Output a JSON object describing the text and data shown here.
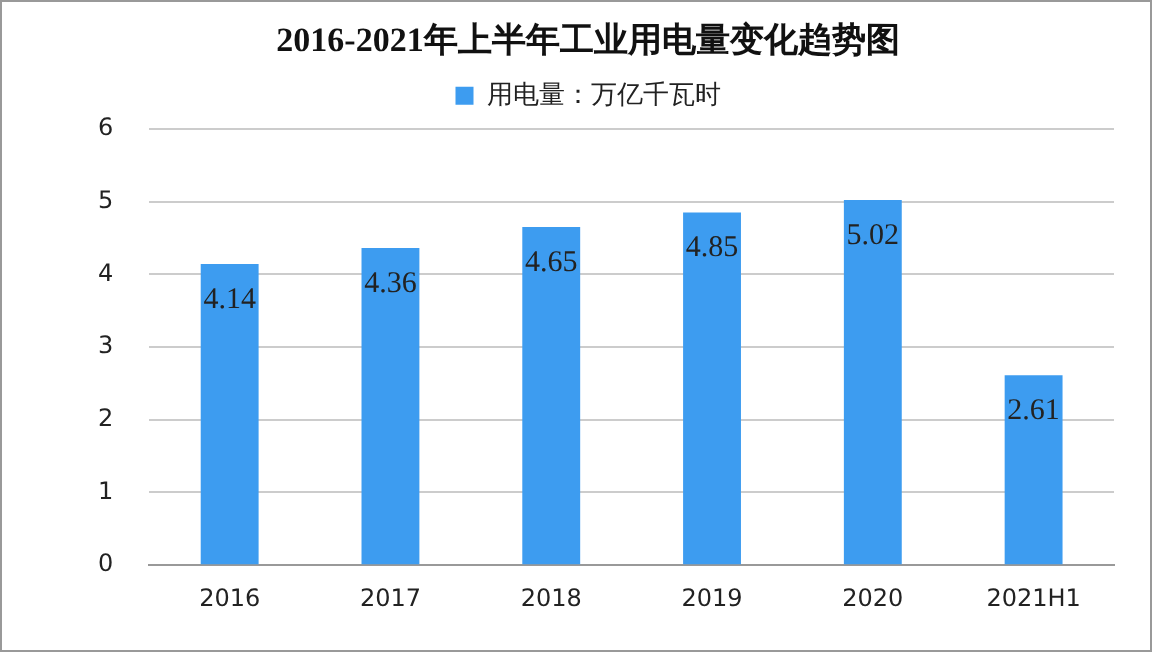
{
  "chart_data": {
    "type": "bar",
    "title": "2016-2021年上半年工业用电量变化趋势图",
    "categories": [
      "2016",
      "2017",
      "2018",
      "2019",
      "2020",
      "2021H1"
    ],
    "series": [
      {
        "name": "用电量：万亿千瓦时",
        "color": "#3d9cf0",
        "values": [
          4.14,
          4.36,
          4.65,
          4.85,
          5.02,
          2.61
        ]
      }
    ],
    "ylim": [
      0,
      6
    ],
    "yticks": [
      0,
      1,
      2,
      3,
      4,
      5,
      6
    ],
    "grid": "y",
    "legend": "top",
    "data_labels": true
  }
}
